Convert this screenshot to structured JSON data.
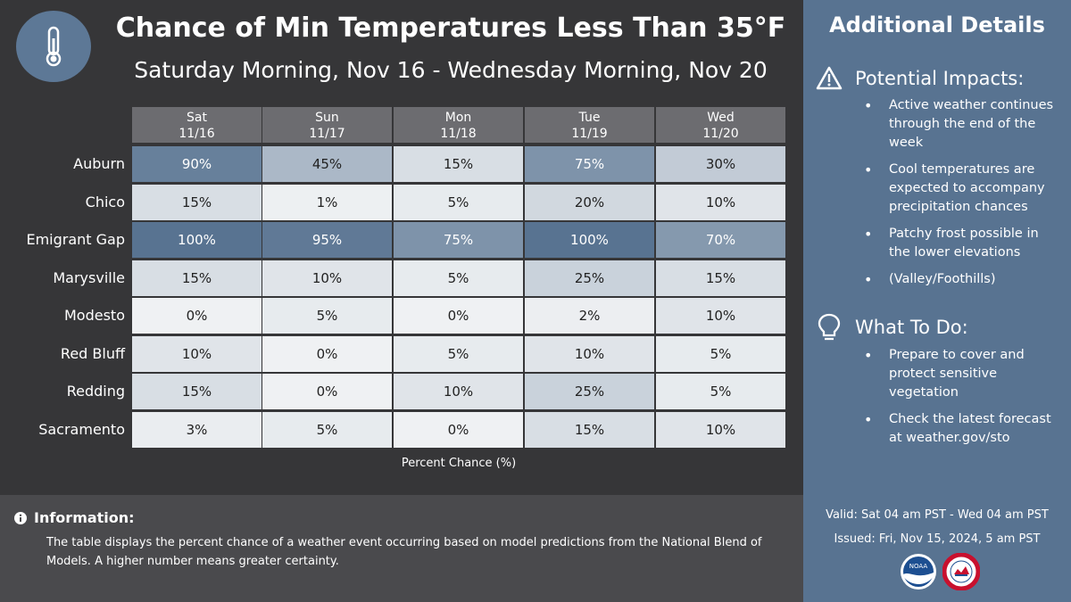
{
  "header": {
    "title": "Chance of Min Temperatures Less Than 35°F",
    "subtitle": "Saturday Morning, Nov 16 - Wednesday Morning, Nov 20"
  },
  "table": {
    "columns": [
      {
        "day": "Sat",
        "date": "11/16"
      },
      {
        "day": "Sun",
        "date": "11/17"
      },
      {
        "day": "Mon",
        "date": "11/18"
      },
      {
        "day": "Tue",
        "date": "11/19"
      },
      {
        "day": "Wed",
        "date": "11/20"
      }
    ],
    "rows": [
      {
        "location": "Auburn",
        "values": [
          "90%",
          "45%",
          "15%",
          "75%",
          "30%"
        ]
      },
      {
        "location": "Chico",
        "values": [
          "15%",
          "1%",
          "5%",
          "20%",
          "10%"
        ]
      },
      {
        "location": "Emigrant Gap",
        "values": [
          "100%",
          "95%",
          "75%",
          "100%",
          "70%"
        ]
      },
      {
        "location": "Marysville",
        "values": [
          "15%",
          "10%",
          "5%",
          "25%",
          "15%"
        ]
      },
      {
        "location": "Modesto",
        "values": [
          "0%",
          "5%",
          "0%",
          "2%",
          "10%"
        ]
      },
      {
        "location": "Red Bluff",
        "values": [
          "10%",
          "0%",
          "5%",
          "10%",
          "5%"
        ]
      },
      {
        "location": "Redding",
        "values": [
          "15%",
          "0%",
          "10%",
          "25%",
          "5%"
        ]
      },
      {
        "location": "Sacramento",
        "values": [
          "3%",
          "5%",
          "0%",
          "15%",
          "10%"
        ]
      }
    ],
    "axis_label": "Percent Chance (%)"
  },
  "info": {
    "title": "Information:",
    "text": "The table displays the percent chance of a weather event occurring based on model predictions from the National Blend of Models. A higher number means greater certainty."
  },
  "sidebar": {
    "title": "Additional Details",
    "impacts": {
      "heading": "Potential Impacts:",
      "items": [
        "Active weather continues through the end of the week",
        "Cool temperatures are expected to accompany precipitation chances",
        "Patchy frost possible in the lower elevations",
        "(Valley/Foothills)"
      ]
    },
    "todo": {
      "heading": "What To Do:",
      "items": [
        "Prepare to cover and protect sensitive vegetation",
        "Check the latest forecast at weather.gov/sto"
      ]
    },
    "valid": "Valid: Sat 04 am PST - Wed 04 am PST",
    "issued": "Issued: Fri, Nov 15, 2024, 5 am PST",
    "logos": {
      "noaa": "NOAA",
      "nws": "NATIONAL WEATHER SERVICE"
    }
  },
  "colors": {
    "background": "#363638",
    "sidebar": "#587391",
    "header_cell": "#6c6c70",
    "cell_low": "#eff1f3",
    "cell_high": "#587391"
  },
  "icons": {
    "badge": "thermometer-icon",
    "info": "info-icon",
    "impacts": "warning-triangle-icon",
    "todo": "lightbulb-icon"
  }
}
